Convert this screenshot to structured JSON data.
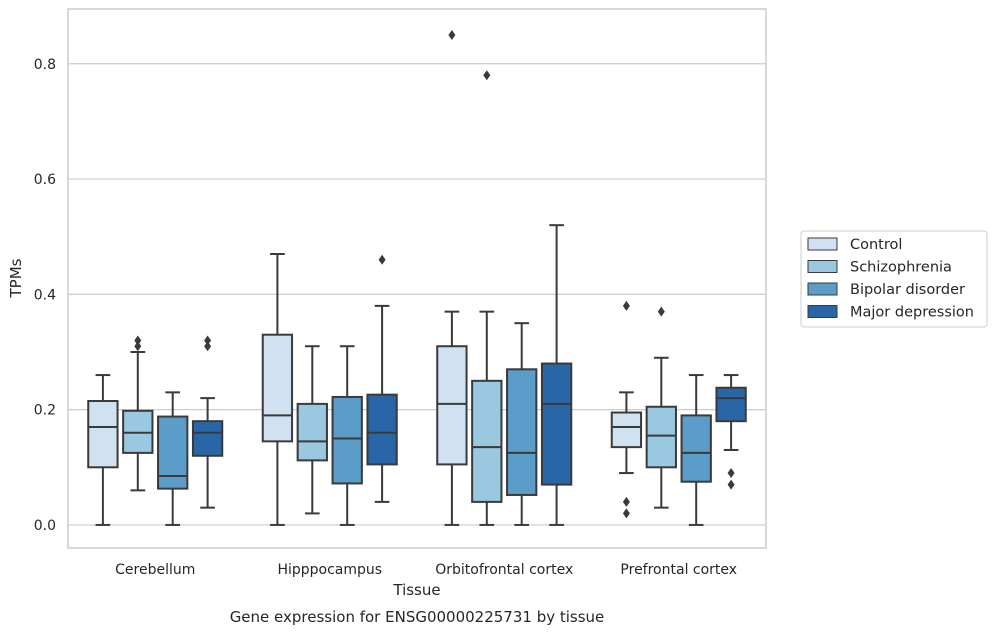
{
  "chart_data": {
    "type": "box",
    "title": "",
    "xlabel": "Tissue",
    "ylabel": "TPMs",
    "caption": "Gene expression for ENSG00000225731 by tissue",
    "ylim": [
      -0.04,
      0.895
    ],
    "yticks": [
      0.0,
      0.2,
      0.4,
      0.6,
      0.8
    ],
    "ytick_labels": [
      "0.0",
      "0.2",
      "0.4",
      "0.6",
      "0.8"
    ],
    "grid": true,
    "legend_position": "right",
    "categories": [
      "Cerebellum",
      "Hipppocampus",
      "Orbitofrontal cortex",
      "Prefrontal cortex"
    ],
    "series": [
      {
        "name": "Control",
        "color": "#d0e1f2",
        "boxes": [
          {
            "whisker_low": 0.0,
            "q1": 0.1,
            "median": 0.17,
            "q3": 0.215,
            "whisker_high": 0.26,
            "outliers": []
          },
          {
            "whisker_low": 0.0,
            "q1": 0.145,
            "median": 0.19,
            "q3": 0.33,
            "whisker_high": 0.47,
            "outliers": []
          },
          {
            "whisker_low": 0.0,
            "q1": 0.105,
            "median": 0.21,
            "q3": 0.31,
            "whisker_high": 0.37,
            "outliers": [
              0.85
            ]
          },
          {
            "whisker_low": 0.09,
            "q1": 0.135,
            "median": 0.17,
            "q3": 0.195,
            "whisker_high": 0.23,
            "outliers": [
              0.38,
              0.04,
              0.02
            ]
          }
        ]
      },
      {
        "name": "Schizophrenia",
        "color": "#9ac8e0",
        "boxes": [
          {
            "whisker_low": 0.06,
            "q1": 0.125,
            "median": 0.16,
            "q3": 0.198,
            "whisker_high": 0.3,
            "outliers": [
              0.31,
              0.32
            ]
          },
          {
            "whisker_low": 0.02,
            "q1": 0.112,
            "median": 0.145,
            "q3": 0.21,
            "whisker_high": 0.31,
            "outliers": []
          },
          {
            "whisker_low": 0.0,
            "q1": 0.04,
            "median": 0.135,
            "q3": 0.25,
            "whisker_high": 0.37,
            "outliers": [
              0.78
            ]
          },
          {
            "whisker_low": 0.03,
            "q1": 0.1,
            "median": 0.155,
            "q3": 0.205,
            "whisker_high": 0.29,
            "outliers": [
              0.37
            ]
          }
        ]
      },
      {
        "name": "Bipolar disorder",
        "color": "#5b9cc9",
        "boxes": [
          {
            "whisker_low": 0.0,
            "q1": 0.063,
            "median": 0.085,
            "q3": 0.188,
            "whisker_high": 0.23,
            "outliers": []
          },
          {
            "whisker_low": 0.0,
            "q1": 0.072,
            "median": 0.15,
            "q3": 0.222,
            "whisker_high": 0.31,
            "outliers": []
          },
          {
            "whisker_low": 0.0,
            "q1": 0.052,
            "median": 0.125,
            "q3": 0.27,
            "whisker_high": 0.35,
            "outliers": []
          },
          {
            "whisker_low": 0.0,
            "q1": 0.075,
            "median": 0.125,
            "q3": 0.19,
            "whisker_high": 0.26,
            "outliers": []
          }
        ]
      },
      {
        "name": "Major depression",
        "color": "#2866a7",
        "boxes": [
          {
            "whisker_low": 0.03,
            "q1": 0.12,
            "median": 0.16,
            "q3": 0.18,
            "whisker_high": 0.22,
            "outliers": [
              0.31,
              0.32
            ]
          },
          {
            "whisker_low": 0.04,
            "q1": 0.105,
            "median": 0.16,
            "q3": 0.226,
            "whisker_high": 0.38,
            "outliers": [
              0.46
            ]
          },
          {
            "whisker_low": 0.0,
            "q1": 0.07,
            "median": 0.21,
            "q3": 0.28,
            "whisker_high": 0.52,
            "outliers": []
          },
          {
            "whisker_low": 0.13,
            "q1": 0.18,
            "median": 0.22,
            "q3": 0.238,
            "whisker_high": 0.26,
            "outliers": [
              0.09,
              0.07
            ]
          }
        ]
      }
    ]
  }
}
